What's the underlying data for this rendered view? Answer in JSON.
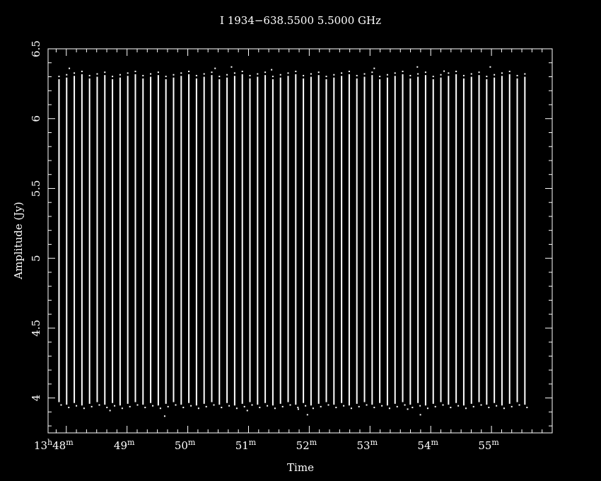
{
  "chart_data": {
    "type": "scatter",
    "title": "I 1934−638.5500 5.5000 GHz",
    "xlabel": "Time",
    "ylabel": "Amplitude (Jy)",
    "ylim": [
      3.75,
      6.5
    ],
    "xlim_minutes": [
      47.7,
      56.0
    ],
    "x_ticks": [
      {
        "minute": 48,
        "h": "13",
        "m": "48",
        "first": true
      },
      {
        "minute": 49,
        "m": "49"
      },
      {
        "minute": 50,
        "m": "50"
      },
      {
        "minute": 51,
        "m": "51"
      },
      {
        "minute": 52,
        "m": "52"
      },
      {
        "minute": 53,
        "m": "53"
      },
      {
        "minute": 54,
        "m": "54"
      },
      {
        "minute": 55,
        "m": "55"
      }
    ],
    "y_ticks": [
      "4",
      "4.5",
      "5",
      "5.5",
      "6",
      "6.5"
    ],
    "series": [
      {
        "color": "#ffffff",
        "time_range_minutes": [
          47.88,
          55.55
        ],
        "scan_count": 62,
        "amplitude_low": 3.97,
        "amplitude_high": 6.3,
        "outliers": [
          {
            "t": 48.05,
            "y": 6.36
          },
          {
            "t": 48.72,
            "y": 3.91
          },
          {
            "t": 49.62,
            "y": 3.87
          },
          {
            "t": 50.45,
            "y": 6.36
          },
          {
            "t": 50.72,
            "y": 6.37
          },
          {
            "t": 50.98,
            "y": 3.91
          },
          {
            "t": 51.38,
            "y": 6.35
          },
          {
            "t": 51.82,
            "y": 3.92
          },
          {
            "t": 51.97,
            "y": 3.88
          },
          {
            "t": 53.07,
            "y": 6.36
          },
          {
            "t": 53.62,
            "y": 3.92
          },
          {
            "t": 53.78,
            "y": 6.37
          },
          {
            "t": 53.83,
            "y": 3.88
          },
          {
            "t": 54.22,
            "y": 6.34
          },
          {
            "t": 54.98,
            "y": 6.37
          }
        ]
      }
    ]
  }
}
